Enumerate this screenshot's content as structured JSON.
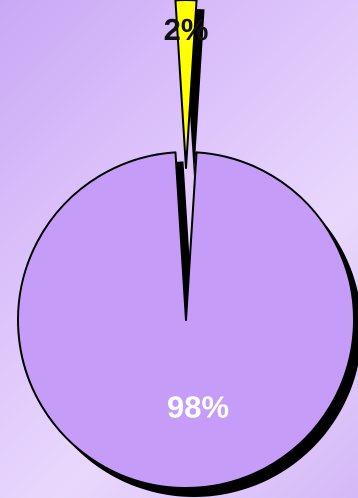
{
  "chart_data": {
    "type": "pie",
    "title": "",
    "slices": [
      {
        "value": 2,
        "label": "2%",
        "color": "#ffff00",
        "exploded": true
      },
      {
        "value": 98,
        "label": "98%",
        "color": "#c59cf7",
        "exploded": false
      }
    ],
    "legend": "none",
    "style": "3d-shadow"
  }
}
